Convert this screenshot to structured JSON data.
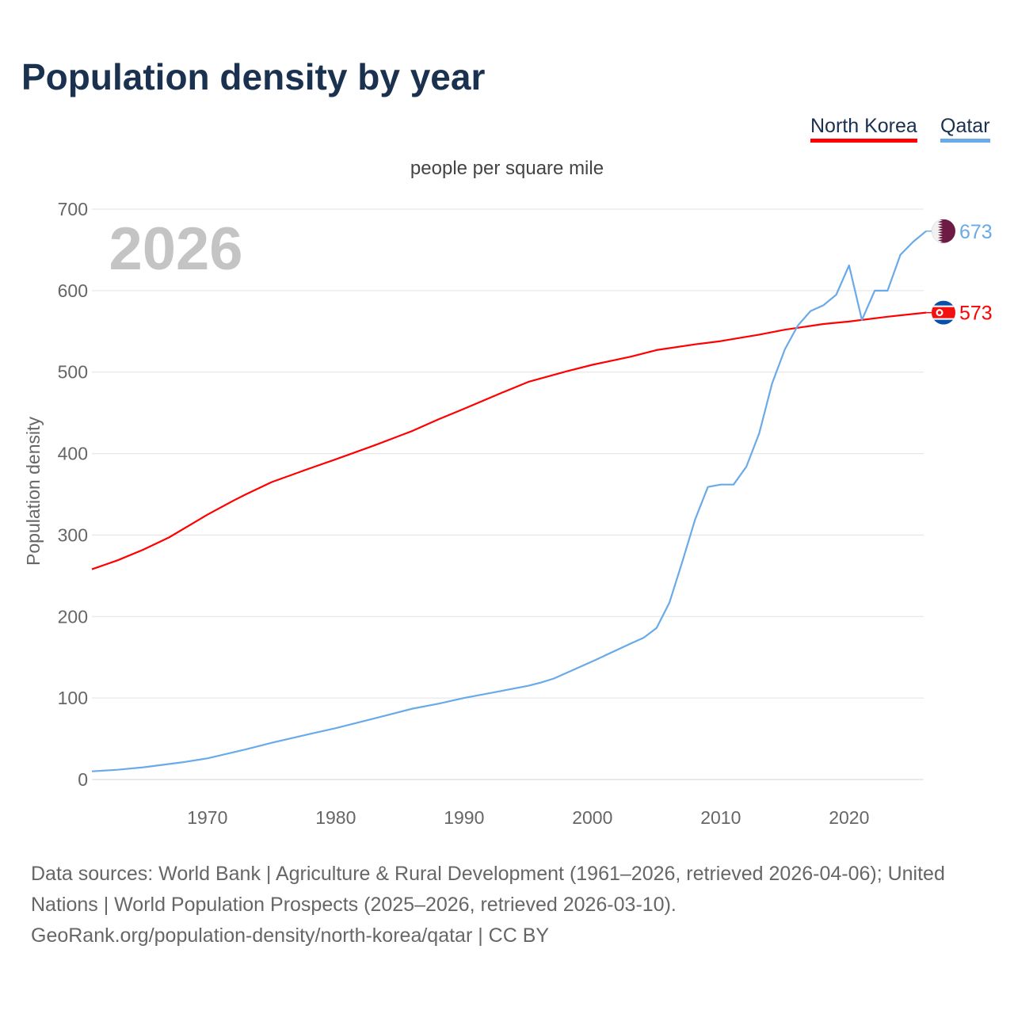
{
  "title": "Population density by year",
  "legend": [
    {
      "name": "North Korea",
      "color": "#ff0000"
    },
    {
      "name": "Qatar",
      "color": "#6aaae8"
    }
  ],
  "footer": {
    "line1": "Data sources: World Bank | Agriculture & Rural Development (1961–2026, retrieved 2026-04-06); United Nations | World Population Prospects (2025–2026, retrieved 2026-03-10).",
    "line2": "GeoRank.org/population-density/north-korea/qatar | CC BY"
  },
  "chart_data": {
    "type": "line",
    "title": "Population density by year",
    "subtitle": "people per square mile",
    "xlabel": "",
    "ylabel": "Population density",
    "year_watermark": "2026",
    "xlim": [
      1961,
      2026
    ],
    "ylim": [
      0,
      700
    ],
    "xticks": [
      1970,
      1980,
      1990,
      2000,
      2010,
      2020
    ],
    "yticks": [
      0,
      100,
      200,
      300,
      400,
      500,
      600,
      700
    ],
    "grid": true,
    "legend_position": "top-right",
    "series": [
      {
        "name": "North Korea",
        "color": "#ff0000",
        "end_label": "573",
        "flag": "north-korea",
        "points": [
          [
            1961,
            258
          ],
          [
            1963,
            269
          ],
          [
            1965,
            282
          ],
          [
            1967,
            297
          ],
          [
            1970,
            325
          ],
          [
            1972,
            342
          ],
          [
            1973,
            350
          ],
          [
            1975,
            365
          ],
          [
            1978,
            382
          ],
          [
            1980,
            393
          ],
          [
            1983,
            410
          ],
          [
            1986,
            428
          ],
          [
            1988,
            442
          ],
          [
            1990,
            455
          ],
          [
            1993,
            475
          ],
          [
            1995,
            488
          ],
          [
            1998,
            501
          ],
          [
            2000,
            509
          ],
          [
            2003,
            519
          ],
          [
            2005,
            527
          ],
          [
            2008,
            534
          ],
          [
            2010,
            538
          ],
          [
            2013,
            546
          ],
          [
            2015,
            552
          ],
          [
            2018,
            559
          ],
          [
            2020,
            562
          ],
          [
            2023,
            568
          ],
          [
            2026,
            573
          ]
        ]
      },
      {
        "name": "Qatar",
        "color": "#6aaae8",
        "end_label": "673",
        "flag": "qatar",
        "points": [
          [
            1961,
            10
          ],
          [
            1963,
            12
          ],
          [
            1965,
            15
          ],
          [
            1968,
            21
          ],
          [
            1970,
            26
          ],
          [
            1973,
            37
          ],
          [
            1975,
            45
          ],
          [
            1978,
            56
          ],
          [
            1980,
            63
          ],
          [
            1983,
            75
          ],
          [
            1986,
            87
          ],
          [
            1988,
            93
          ],
          [
            1990,
            100
          ],
          [
            1993,
            109
          ],
          [
            1995,
            115
          ],
          [
            1996,
            119
          ],
          [
            1997,
            124
          ],
          [
            2000,
            145
          ],
          [
            2003,
            167
          ],
          [
            2004,
            174
          ],
          [
            2005,
            186
          ],
          [
            2006,
            217
          ],
          [
            2007,
            267
          ],
          [
            2008,
            319
          ],
          [
            2009,
            359
          ],
          [
            2010,
            362
          ],
          [
            2011,
            362
          ],
          [
            2012,
            384
          ],
          [
            2013,
            425
          ],
          [
            2014,
            486
          ],
          [
            2015,
            528
          ],
          [
            2016,
            557
          ],
          [
            2017,
            575
          ],
          [
            2018,
            582
          ],
          [
            2019,
            595
          ],
          [
            2020,
            631
          ],
          [
            2021,
            564
          ],
          [
            2022,
            600
          ],
          [
            2023,
            600
          ],
          [
            2024,
            644
          ],
          [
            2025,
            660
          ],
          [
            2026,
            673
          ]
        ]
      }
    ]
  }
}
